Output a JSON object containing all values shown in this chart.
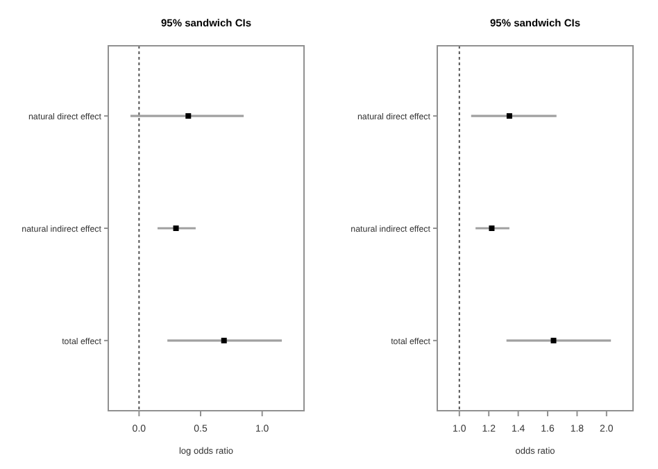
{
  "chart_data": [
    {
      "type": "scatter",
      "orientation": "horizontal",
      "title": "95% sandwich CIs",
      "xlabel": "log odds ratio",
      "categories": [
        "natural direct effect",
        "natural indirect effect",
        "total effect"
      ],
      "values": [
        0.4,
        0.3,
        0.69
      ],
      "errors": [
        [
          -0.07,
          0.85
        ],
        [
          0.15,
          0.46
        ],
        [
          0.23,
          1.16
        ]
      ],
      "color": "#000000",
      "marker": "square",
      "xlim": [
        -0.25,
        1.34
      ],
      "xticks": [
        {
          "value": 0,
          "label": "0.0"
        },
        {
          "value": 0.5,
          "label": "0.5"
        },
        {
          "value": 1,
          "label": "1.0"
        }
      ],
      "ref_lines": [
        {
          "axis": "x",
          "value": 0,
          "line_style": "dotted",
          "color": "#555555"
        }
      ]
    },
    {
      "type": "scatter",
      "orientation": "horizontal",
      "title": "95% sandwich CIs",
      "xlabel": "odds ratio",
      "categories": [
        "natural direct effect",
        "natural indirect effect",
        "total effect"
      ],
      "values": [
        1.34,
        1.22,
        1.64
      ],
      "errors": [
        [
          1.08,
          1.66
        ],
        [
          1.11,
          1.34
        ],
        [
          1.32,
          2.03
        ]
      ],
      "color": "#000000",
      "marker": "square",
      "xlim": [
        0.85,
        2.18
      ],
      "xticks": [
        {
          "value": 1,
          "label": "1.0"
        },
        {
          "value": 1.2,
          "label": "1.2"
        },
        {
          "value": 1.4,
          "label": "1.4"
        },
        {
          "value": 1.6,
          "label": "1.6"
        },
        {
          "value": 1.8,
          "label": "1.8"
        },
        {
          "value": 2,
          "label": "2.0"
        }
      ],
      "ref_lines": [
        {
          "axis": "x",
          "value": 1,
          "line_style": "dotted",
          "color": "#555555"
        }
      ]
    }
  ]
}
